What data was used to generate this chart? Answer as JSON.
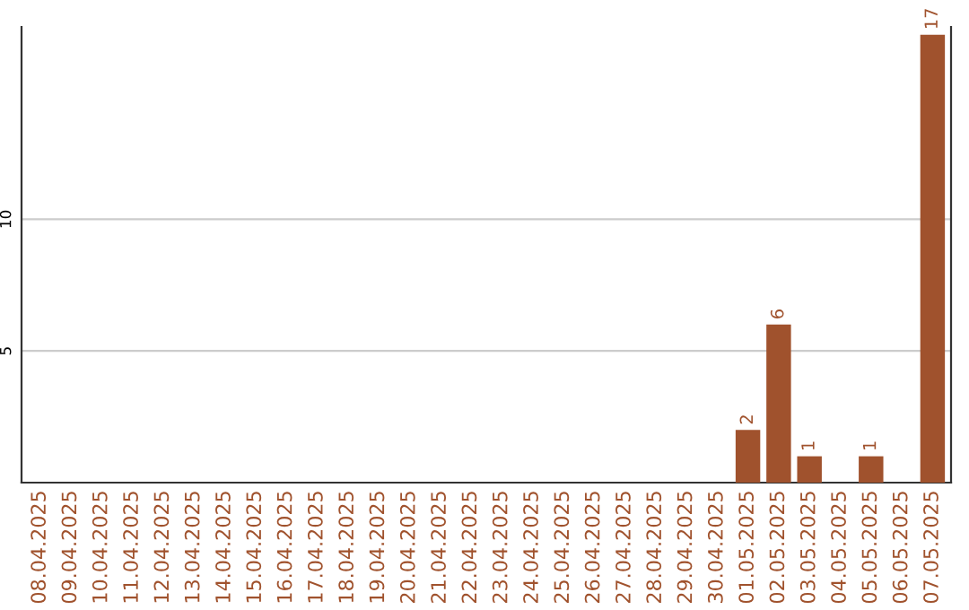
{
  "chart_data": {
    "type": "bar",
    "categories": [
      "08.04.2025",
      "09.04.2025",
      "10.04.2025",
      "11.04.2025",
      "12.04.2025",
      "13.04.2025",
      "14.04.2025",
      "15.04.2025",
      "16.04.2025",
      "17.04.2025",
      "18.04.2025",
      "19.04.2025",
      "20.04.2025",
      "21.04.2025",
      "22.04.2025",
      "23.04.2025",
      "24.04.2025",
      "25.04.2025",
      "26.04.2025",
      "27.04.2025",
      "28.04.2025",
      "29.04.2025",
      "30.04.2025",
      "01.05.2025",
      "02.05.2025",
      "03.05.2025",
      "04.05.2025",
      "05.05.2025",
      "06.05.2025",
      "07.05.2025"
    ],
    "values": [
      0,
      0,
      0,
      0,
      0,
      0,
      0,
      0,
      0,
      0,
      0,
      0,
      0,
      0,
      0,
      0,
      0,
      0,
      0,
      0,
      0,
      0,
      0,
      2,
      6,
      1,
      0,
      1,
      0,
      17
    ],
    "value_labels": [
      null,
      null,
      null,
      null,
      null,
      null,
      null,
      null,
      null,
      null,
      null,
      null,
      null,
      null,
      null,
      null,
      null,
      null,
      null,
      null,
      null,
      null,
      null,
      "2",
      "6",
      "1",
      null,
      "1",
      null,
      "17"
    ],
    "color": "#a0522d",
    "ylim": [
      0,
      17.3
    ],
    "yticks": [
      5,
      10
    ],
    "grid": "y"
  }
}
